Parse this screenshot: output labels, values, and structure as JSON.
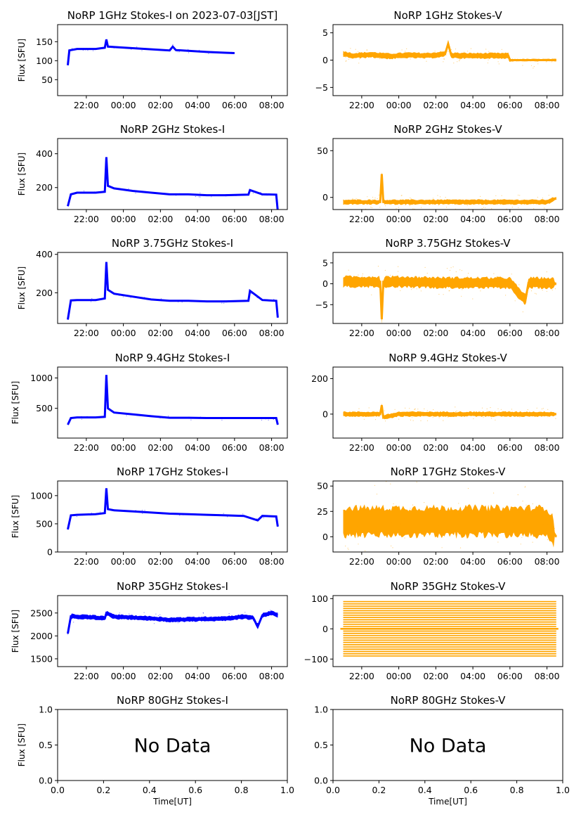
{
  "colors": {
    "stokes_i": "#0000ff",
    "stokes_v": "#ffa500"
  },
  "chart_data": [
    {
      "type": "scatter",
      "title": "NoRP 1GHz Stokes-I on 2023-07-03[JST]",
      "ylabel": "Flux [SFU]",
      "xlabel": "",
      "xticks": [
        "22:00",
        "00:00",
        "02:00",
        "04:00",
        "06:00",
        "08:00"
      ],
      "yticks": [
        50,
        100,
        150
      ],
      "ylim": [
        8,
        195
      ],
      "series": [
        {
          "color": "#0000ff",
          "start": "21:00",
          "end": "06:00",
          "x": [
            "21:00",
            "21:05",
            "21:30",
            "22:30",
            "23:00",
            "23:05",
            "23:10",
            "23:30",
            "00:30",
            "01:30",
            "02:30",
            "02:40",
            "02:50",
            "03:30",
            "04:30",
            "05:30",
            "06:00"
          ],
          "y": [
            88,
            127,
            131,
            131,
            134,
            156,
            137,
            136,
            133,
            130,
            127,
            137,
            128,
            126,
            123,
            121,
            120
          ]
        }
      ]
    },
    {
      "type": "scatter",
      "title": "NoRP 1GHz Stokes-V",
      "ylabel": "",
      "xlabel": "",
      "xticks": [
        "22:00",
        "00:00",
        "02:00",
        "04:00",
        "06:00",
        "08:00"
      ],
      "yticks": [
        -5,
        0,
        5
      ],
      "ylim": [
        -6.5,
        6.5
      ],
      "series": [
        {
          "color": "#ffa500",
          "start": "21:00",
          "end": "08:30",
          "x": [
            "21:00",
            "21:30",
            "22:30",
            "23:30",
            "00:30",
            "01:30",
            "02:30",
            "02:40",
            "02:50",
            "03:30",
            "04:30",
            "05:30",
            "05:55",
            "06:00",
            "08:30"
          ],
          "y": [
            1.2,
            0.8,
            1.0,
            0.7,
            0.9,
            0.8,
            1.1,
            3.0,
            0.9,
            0.8,
            0.8,
            0.8,
            0.8,
            0,
            0
          ]
        }
      ]
    },
    {
      "type": "scatter",
      "title": "NoRP 2GHz Stokes-I",
      "ylabel": "Flux [SFU]",
      "xlabel": "",
      "xticks": [
        "22:00",
        "00:00",
        "02:00",
        "04:00",
        "06:00",
        "08:00"
      ],
      "yticks": [
        200,
        400
      ],
      "ylim": [
        70,
        490
      ],
      "series": [
        {
          "color": "#0000ff",
          "start": "21:00",
          "end": "08:20",
          "x": [
            "21:00",
            "21:10",
            "21:30",
            "22:30",
            "23:00",
            "23:05",
            "23:10",
            "23:30",
            "00:30",
            "01:30",
            "02:30",
            "03:30",
            "04:30",
            "05:30",
            "06:45",
            "06:50",
            "07:30",
            "08:15",
            "08:20"
          ],
          "y": [
            90,
            160,
            170,
            170,
            175,
            380,
            210,
            195,
            180,
            170,
            160,
            160,
            155,
            155,
            158,
            185,
            160,
            158,
            60
          ]
        }
      ]
    },
    {
      "type": "scatter",
      "title": "NoRP 2GHz Stokes-V",
      "ylabel": "",
      "xlabel": "",
      "xticks": [
        "22:00",
        "00:00",
        "02:00",
        "04:00",
        "06:00",
        "08:00"
      ],
      "yticks": [
        0,
        50
      ],
      "ylim": [
        -13,
        63
      ],
      "series": [
        {
          "color": "#ffa500",
          "start": "21:00",
          "end": "08:30",
          "x": [
            "21:00",
            "22:00",
            "23:00",
            "23:05",
            "23:10",
            "00:00",
            "02:00",
            "04:00",
            "06:00",
            "08:00",
            "08:30"
          ],
          "y": [
            -5,
            -5,
            -5,
            25,
            -5,
            -5,
            -5,
            -5,
            -5,
            -5,
            -1
          ]
        }
      ]
    },
    {
      "type": "scatter",
      "title": "NoRP 3.75GHz Stokes-I",
      "ylabel": "Flux [SFU]",
      "xlabel": "",
      "xticks": [
        "22:00",
        "00:00",
        "02:00",
        "04:00",
        "06:00",
        "08:00"
      ],
      "yticks": [
        200,
        400
      ],
      "ylim": [
        40,
        410
      ],
      "series": [
        {
          "color": "#0000ff",
          "start": "21:00",
          "end": "08:20",
          "x": [
            "21:00",
            "21:10",
            "21:30",
            "22:30",
            "23:00",
            "23:05",
            "23:10",
            "23:30",
            "00:30",
            "01:30",
            "02:30",
            "03:30",
            "04:30",
            "05:30",
            "06:45",
            "06:50",
            "07:30",
            "08:15",
            "08:20"
          ],
          "y": [
            60,
            160,
            162,
            162,
            170,
            360,
            215,
            195,
            180,
            165,
            158,
            158,
            155,
            155,
            158,
            210,
            162,
            158,
            70
          ]
        }
      ]
    },
    {
      "type": "scatter",
      "title": "NoRP 3.75GHz Stokes-V",
      "ylabel": "",
      "xlabel": "",
      "xticks": [
        "22:00",
        "00:00",
        "02:00",
        "04:00",
        "06:00",
        "08:00"
      ],
      "yticks": [
        -5,
        0,
        5
      ],
      "ylim": [
        -9.5,
        7.5
      ],
      "series": [
        {
          "color": "#ffa500",
          "start": "21:00",
          "end": "08:30",
          "x": [
            "21:00",
            "22:00",
            "23:00",
            "23:05",
            "23:10",
            "00:00",
            "02:00",
            "04:00",
            "06:00",
            "06:50",
            "07:00",
            "08:00",
            "08:30"
          ],
          "y": [
            0.5,
            0.5,
            0.5,
            -8.5,
            0.5,
            0.5,
            0.3,
            0.2,
            0.2,
            -4,
            0.2,
            0.2,
            0
          ]
        }
      ]
    },
    {
      "type": "scatter",
      "title": "NoRP 9.4GHz Stokes-I",
      "ylabel": "Flux [SFU]",
      "xlabel": "",
      "xticks": [
        "22:00",
        "00:00",
        "02:00",
        "04:00",
        "06:00",
        "08:00"
      ],
      "yticks": [
        500,
        1000
      ],
      "ylim": [
        10,
        1180
      ],
      "series": [
        {
          "color": "#0000ff",
          "start": "21:00",
          "end": "08:20",
          "x": [
            "21:00",
            "21:10",
            "21:30",
            "22:30",
            "23:00",
            "23:05",
            "23:10",
            "23:30",
            "00:30",
            "01:30",
            "02:30",
            "03:30",
            "04:30",
            "05:30",
            "06:30",
            "07:30",
            "08:15",
            "08:20"
          ],
          "y": [
            230,
            340,
            350,
            350,
            360,
            1050,
            500,
            430,
            400,
            370,
            345,
            345,
            340,
            340,
            340,
            340,
            340,
            230
          ]
        }
      ]
    },
    {
      "type": "scatter",
      "title": "NoRP 9.4GHz Stokes-V",
      "ylabel": "",
      "xlabel": "",
      "xticks": [
        "22:00",
        "00:00",
        "02:00",
        "04:00",
        "06:00",
        "08:00"
      ],
      "yticks": [
        0,
        200
      ],
      "ylim": [
        -135,
        265
      ],
      "series": [
        {
          "color": "#ffa500",
          "start": "21:00",
          "end": "08:30",
          "x": [
            "21:00",
            "22:00",
            "23:00",
            "23:05",
            "23:10",
            "00:00",
            "02:00",
            "04:00",
            "06:00",
            "08:00",
            "08:30"
          ],
          "y": [
            0,
            0,
            0,
            50,
            -20,
            0,
            0,
            0,
            0,
            0,
            0
          ]
        }
      ]
    },
    {
      "type": "scatter",
      "title": "NoRP 17GHz Stokes-I",
      "ylabel": "Flux [SFU]",
      "xlabel": "",
      "xticks": [
        "22:00",
        "00:00",
        "02:00",
        "04:00",
        "06:00",
        "08:00"
      ],
      "yticks": [
        0,
        500,
        1000
      ],
      "ylim": [
        0,
        1260
      ],
      "series": [
        {
          "color": "#0000ff",
          "start": "21:00",
          "end": "08:20",
          "x": [
            "21:00",
            "21:10",
            "21:30",
            "22:30",
            "23:00",
            "23:05",
            "23:10",
            "23:30",
            "00:30",
            "01:30",
            "02:30",
            "03:30",
            "04:30",
            "05:30",
            "06:30",
            "07:15",
            "07:30",
            "08:15",
            "08:20"
          ],
          "y": [
            400,
            650,
            660,
            670,
            690,
            1130,
            760,
            740,
            720,
            700,
            680,
            670,
            660,
            650,
            640,
            560,
            640,
            630,
            450
          ]
        }
      ]
    },
    {
      "type": "scatter",
      "title": "NoRP 17GHz Stokes-V",
      "ylabel": "",
      "xlabel": "",
      "xticks": [
        "22:00",
        "00:00",
        "02:00",
        "04:00",
        "06:00",
        "08:00"
      ],
      "yticks": [
        0,
        25,
        50
      ],
      "ylim": [
        -15,
        55
      ],
      "series": [
        {
          "color": "#ffa500",
          "start": "21:00",
          "end": "08:30",
          "x": [
            "21:00",
            "22:00",
            "23:00",
            "00:00",
            "02:00",
            "04:00",
            "06:00",
            "08:00",
            "08:30"
          ],
          "y": [
            15,
            15,
            15,
            15,
            15,
            15,
            15,
            15,
            0
          ]
        }
      ]
    },
    {
      "type": "scatter",
      "title": "NoRP 35GHz Stokes-I",
      "ylabel": "Flux [SFU]",
      "xlabel": "",
      "xticks": [
        "22:00",
        "00:00",
        "02:00",
        "04:00",
        "06:00",
        "08:00"
      ],
      "yticks": [
        1500,
        2000,
        2500
      ],
      "ylim": [
        1330,
        2880
      ],
      "series": [
        {
          "color": "#0000ff",
          "start": "21:00",
          "end": "08:20",
          "x": [
            "21:00",
            "21:10",
            "21:30",
            "22:30",
            "23:00",
            "23:05",
            "23:30",
            "00:30",
            "01:30",
            "02:30",
            "03:30",
            "04:30",
            "05:30",
            "06:30",
            "07:00",
            "07:15",
            "07:30",
            "08:00",
            "08:20"
          ],
          "y": [
            2050,
            2430,
            2420,
            2400,
            2380,
            2500,
            2420,
            2400,
            2380,
            2350,
            2360,
            2370,
            2380,
            2420,
            2400,
            2200,
            2450,
            2500,
            2450
          ]
        }
      ]
    },
    {
      "type": "scatter",
      "title": "NoRP 35GHz Stokes-V",
      "ylabel": "",
      "xlabel": "",
      "xticks": [
        "22:00",
        "00:00",
        "02:00",
        "04:00",
        "06:00",
        "08:00"
      ],
      "yticks": [
        -100,
        0,
        100
      ],
      "ylim": [
        -125,
        110
      ],
      "series": [
        {
          "color": "#ffa500",
          "start": "21:00",
          "end": "08:30",
          "x": [
            "21:00",
            "08:30"
          ],
          "y": [
            0,
            0
          ]
        }
      ]
    },
    {
      "type": "scatter",
      "title": "NoRP 80GHz Stokes-I",
      "ylabel": "Flux [SFU]",
      "xlabel": "Time[UT]",
      "xticks": [
        "0.0",
        "0.2",
        "0.4",
        "0.6",
        "0.8",
        "1.0"
      ],
      "yticks": [
        "0.0",
        "0.5",
        "1.0"
      ],
      "xlim": [
        0,
        1
      ],
      "ylim": [
        0,
        1
      ],
      "annotation": "No Data",
      "series": []
    },
    {
      "type": "scatter",
      "title": "NoRP 80GHz Stokes-V",
      "ylabel": "",
      "xlabel": "Time[UT]",
      "xticks": [
        "0.0",
        "0.2",
        "0.4",
        "0.6",
        "0.8",
        "1.0"
      ],
      "yticks": [
        "0.0",
        "0.5",
        "1.0"
      ],
      "xlim": [
        0,
        1
      ],
      "ylim": [
        0,
        1
      ],
      "annotation": "No Data",
      "series": []
    }
  ]
}
